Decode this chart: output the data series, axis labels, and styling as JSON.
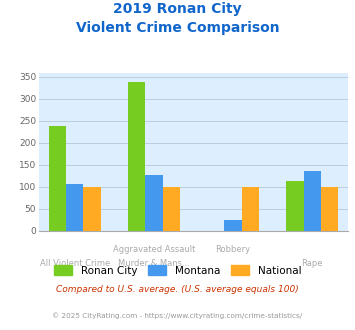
{
  "title_line1": "2019 Ronan City",
  "title_line2": "Violent Crime Comparison",
  "top_labels": [
    "",
    "Aggravated Assault",
    "Robbery",
    ""
  ],
  "bottom_labels": [
    "All Violent Crime",
    "Murder & Mans...",
    "",
    "Rape"
  ],
  "ronan_city": [
    238,
    338,
    0,
    113
  ],
  "montana": [
    107,
    128,
    25,
    137
  ],
  "national": [
    100,
    100,
    100,
    100
  ],
  "color_ronan": "#77cc22",
  "color_montana": "#4499ee",
  "color_national": "#ffaa22",
  "ylim": [
    0,
    360
  ],
  "yticks": [
    0,
    50,
    100,
    150,
    200,
    250,
    300,
    350
  ],
  "background_color": "#ddeeff",
  "grid_color": "#bbccdd",
  "title_color": "#1166cc",
  "note_text": "Compared to U.S. average. (U.S. average equals 100)",
  "note_color": "#cc3300",
  "footer": "© 2025 CityRating.com - https://www.cityrating.com/crime-statistics/",
  "footer_color": "#999999",
  "footer_link_color": "#4499ee",
  "legend_labels": [
    "Ronan City",
    "Montana",
    "National"
  ],
  "bar_width": 0.22,
  "label_color": "#aaaaaa"
}
